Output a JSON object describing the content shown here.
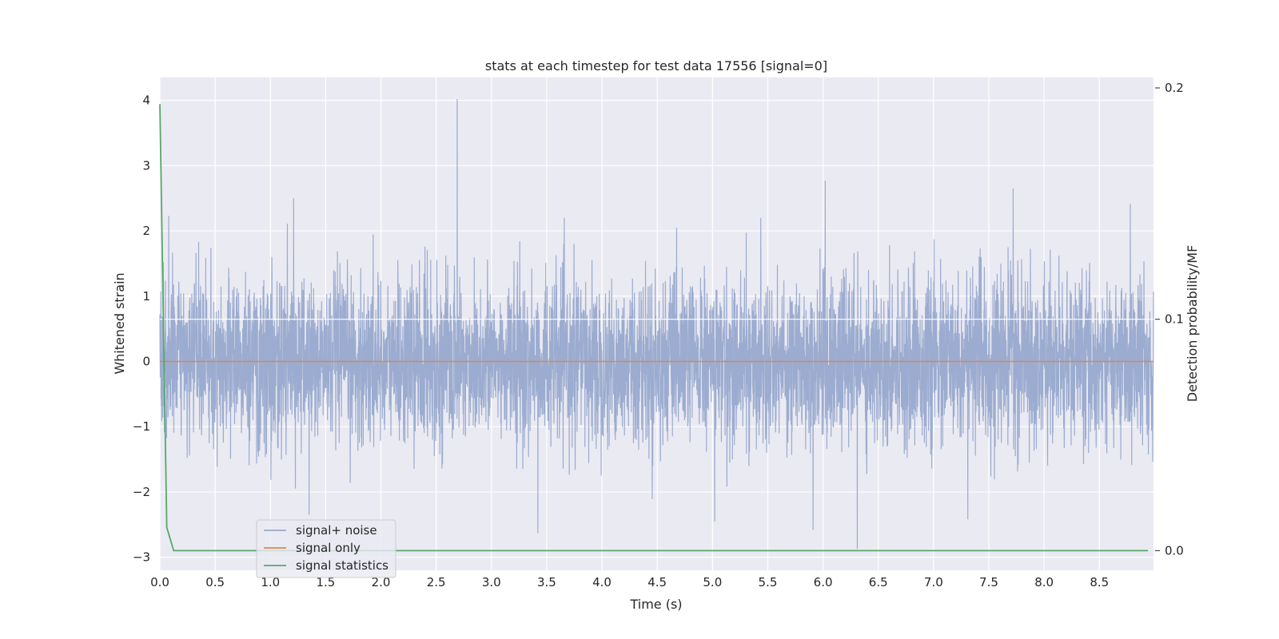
{
  "chart_data": {
    "type": "line",
    "title": "stats at each timestep for test data 17556 [signal=0]",
    "xlabel": "Time (s)",
    "ylabel": "Whitened strain",
    "y2label": "Detection probability/MF",
    "xlim": [
      0.0,
      8.99
    ],
    "ylim": [
      -3.2,
      4.35
    ],
    "y2lim": [
      -0.0085,
      0.2045
    ],
    "grid": true,
    "legend_position": "lower-left",
    "x_ticks": [
      "0.0",
      "0.5",
      "1.0",
      "1.5",
      "2.0",
      "2.5",
      "3.0",
      "3.5",
      "4.0",
      "4.5",
      "5.0",
      "5.5",
      "6.0",
      "6.5",
      "7.0",
      "7.5",
      "8.0",
      "8.5"
    ],
    "y_ticks": [
      "4",
      "3",
      "2",
      "1",
      "0",
      "−1",
      "−2",
      "−3"
    ],
    "y2_ticks": [
      "0.2",
      "0.1",
      "0.0"
    ],
    "series": [
      {
        "name": "signal+ noise",
        "axis": "left",
        "color": "#98a9ce",
        "style": "dense noise",
        "notable_extremes": [
          {
            "x": 2.69,
            "y": 4.02
          },
          {
            "x": 6.02,
            "y": 2.77
          },
          {
            "x": 7.72,
            "y": 2.65
          },
          {
            "x": 1.21,
            "y": 2.5
          },
          {
            "x": 8.78,
            "y": 2.41
          },
          {
            "x": 0.08,
            "y": 2.23
          },
          {
            "x": 6.31,
            "y": -2.87
          },
          {
            "x": 3.42,
            "y": -2.63
          },
          {
            "x": 5.91,
            "y": -2.58
          },
          {
            "x": 5.02,
            "y": -2.45
          },
          {
            "x": 7.31,
            "y": -2.42
          },
          {
            "x": 1.35,
            "y": -2.35
          }
        ]
      },
      {
        "name": "signal only",
        "axis": "left",
        "color": "#dd8452",
        "x": [
          0.0,
          8.99
        ],
        "y": [
          0.0,
          0.0
        ]
      },
      {
        "name": "signal statistics",
        "axis": "right",
        "color": "#55a868",
        "x": [
          0.0,
          0.0625,
          0.125,
          0.25,
          1.0,
          2.0,
          3.0,
          4.0,
          5.0,
          6.0,
          7.0,
          8.0,
          8.94
        ],
        "y": [
          0.193,
          0.01,
          0.0,
          0.0,
          0.0,
          0.0,
          0.0,
          0.0,
          0.0,
          0.0,
          0.0,
          0.0,
          0.0
        ]
      }
    ]
  }
}
